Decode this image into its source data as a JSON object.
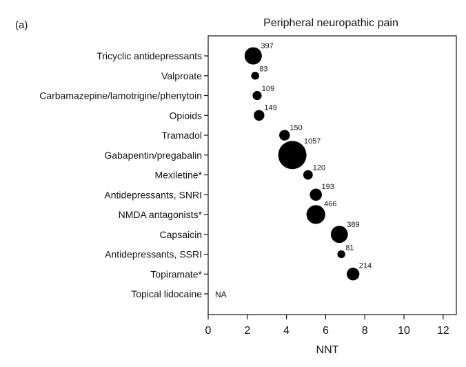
{
  "panel_label": "(a)",
  "chart_data": {
    "type": "scatter",
    "title": "Peripheral neuropathic pain",
    "xlabel": "NNT",
    "ylabel": "",
    "xlim": [
      0,
      12
    ],
    "xticks": [
      0,
      2,
      4,
      6,
      8,
      10,
      12
    ],
    "grid": false,
    "marker_color": "#000000",
    "bubble_size_meaning": "number of patients (printed beside each bubble)",
    "categories": [
      "Tricyclic antidepressants",
      "Valproate",
      "Carbamazepine/lamotrigine/phenytoin",
      "Opioids",
      "Tramadol",
      "Gabapentin/pregabalin",
      "Mexiletine*",
      "Antidepressants, SNRI",
      "NMDA antagonists*",
      "Capsaicin",
      "Antidepressants, SSRI",
      "Topiramate*",
      "Topical lidocaine"
    ],
    "points": [
      {
        "category": "Tricyclic antidepressants",
        "nnt": 2.3,
        "n": "397"
      },
      {
        "category": "Valproate",
        "nnt": 2.4,
        "n": "83"
      },
      {
        "category": "Carbamazepine/lamotrigine/phenytoin",
        "nnt": 2.5,
        "n": "109"
      },
      {
        "category": "Opioids",
        "nnt": 2.6,
        "n": "149"
      },
      {
        "category": "Tramadol",
        "nnt": 3.9,
        "n": "150"
      },
      {
        "category": "Gabapentin/pregabalin",
        "nnt": 4.3,
        "n": "1057"
      },
      {
        "category": "Mexiletine*",
        "nnt": 5.1,
        "n": "120"
      },
      {
        "category": "Antidepressants, SNRI",
        "nnt": 5.5,
        "n": "193"
      },
      {
        "category": "NMDA antagonists*",
        "nnt": 5.5,
        "n": "466"
      },
      {
        "category": "Capsaicin",
        "nnt": 6.7,
        "n": "389"
      },
      {
        "category": "Antidepressants, SSRI",
        "nnt": 6.8,
        "n": "81"
      },
      {
        "category": "Topiramate*",
        "nnt": 7.4,
        "n": "214"
      },
      {
        "category": "Topical lidocaine",
        "nnt": null,
        "n": null,
        "note": "NA"
      }
    ]
  }
}
